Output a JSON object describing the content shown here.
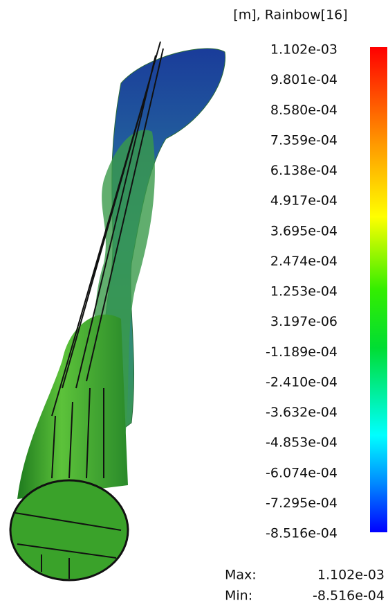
{
  "legend": {
    "title": "[m], Rainbow[16]",
    "labels": [
      "1.102e-03",
      "9.801e-04",
      "8.580e-04",
      "7.359e-04",
      "6.138e-04",
      "4.917e-04",
      "3.695e-04",
      "2.474e-04",
      "1.253e-04",
      "3.197e-06",
      "-1.189e-04",
      "-2.410e-04",
      "-3.632e-04",
      "-4.853e-04",
      "-6.074e-04",
      "-7.295e-04",
      "-8.516e-04"
    ]
  },
  "summary": {
    "max_label": "Max:",
    "max_value": "1.102e-03",
    "min_label": "Min:",
    "min_value": "-8.516e-04"
  }
}
